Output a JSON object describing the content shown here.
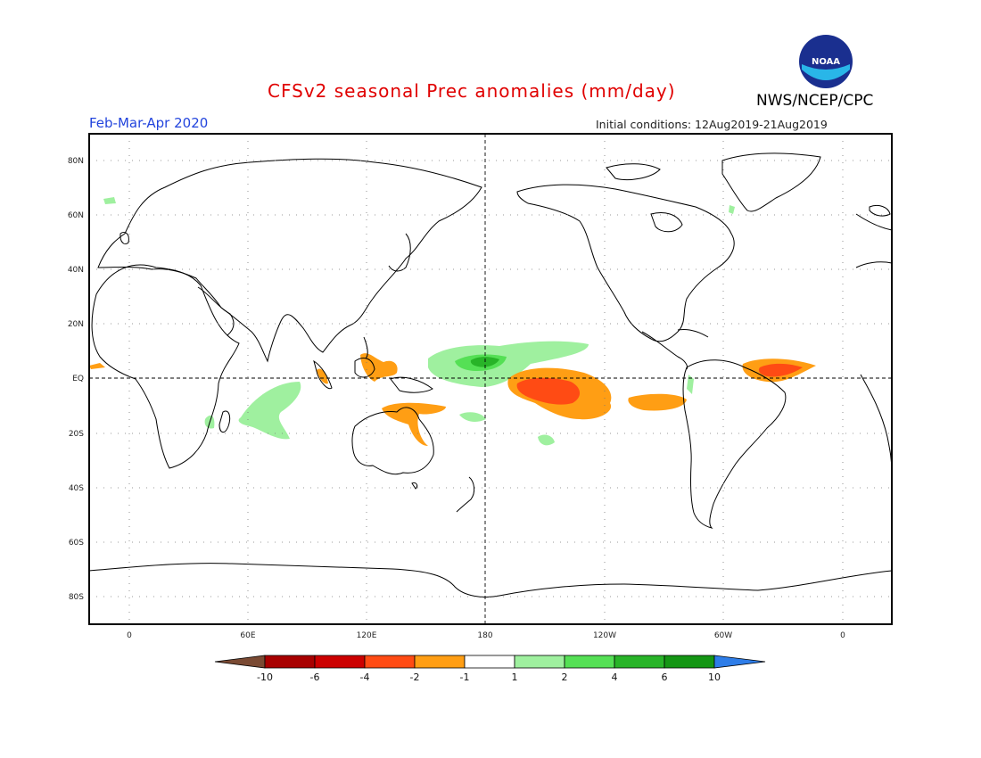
{
  "header": {
    "title": "CFSv2 seasonal Prec anomalies (mm/day)",
    "period": "Feb-Mar-Apr 2020",
    "initial_conditions": "Initial conditions: 12Aug2019-21Aug2019",
    "org": "NWS/NCEP/CPC",
    "logo_text": "NOAA"
  },
  "axes": {
    "lat_labels": [
      "80N",
      "60N",
      "40N",
      "20N",
      "EQ",
      "20S",
      "40S",
      "60S",
      "80S"
    ],
    "lon_labels": [
      "0",
      "60E",
      "120E",
      "180",
      "120W",
      "60W",
      "0"
    ]
  },
  "colorbar": {
    "labels": [
      "-10",
      "-6",
      "-4",
      "-2",
      "-1",
      "1",
      "2",
      "4",
      "6",
      "10"
    ],
    "colors": [
      "#7a4a33",
      "#a80000",
      "#cc0000",
      "#ff4b14",
      "#ff9e14",
      "#ffffff",
      "#9ff09f",
      "#55e055",
      "#28b428",
      "#149614",
      "#2e7de8"
    ]
  }
}
